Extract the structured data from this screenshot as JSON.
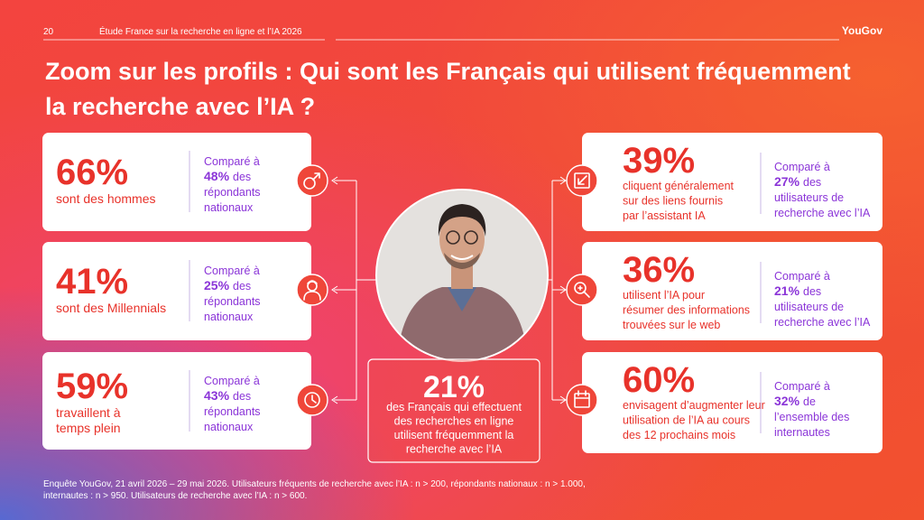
{
  "header": {
    "page_number": "20",
    "study": "Étude France sur la recherche en ligne et l’IA 2026",
    "brand": "YouGov"
  },
  "title": [
    "Zoom sur les profils : Qui sont les Français qui utilisent fréquemment",
    "la recherche avec l’IA ?"
  ],
  "left_cards": [
    {
      "value": "66%",
      "label": [
        "sont des hommes"
      ],
      "comparison": {
        "lead": "Comparé à",
        "value": "48%",
        "after": "des",
        "lines": [
          "répondants",
          "nationaux"
        ]
      }
    },
    {
      "value": "41%",
      "label": [
        "sont des Millennials"
      ],
      "comparison": {
        "lead": "Comparé à",
        "value": "25%",
        "after": "des",
        "lines": [
          "répondants",
          "nationaux"
        ]
      }
    },
    {
      "value": "59%",
      "label": [
        "travaillent à",
        "temps plein"
      ],
      "comparison": {
        "lead": "Comparé à",
        "value": "43%",
        "after": "des",
        "lines": [
          "répondants",
          "nationaux"
        ]
      }
    }
  ],
  "right_cards": [
    {
      "value": "39%",
      "label": [
        "cliquent généralement",
        "sur des liens fournis",
        "par l’assistant IA"
      ],
      "comparison": {
        "lead": "Comparé à",
        "value": "27%",
        "after": "des",
        "lines": [
          "utilisateurs de",
          "recherche avec l’IA"
        ]
      }
    },
    {
      "value": "36%",
      "label": [
        "utilisent l’IA pour",
        "résumer des informations",
        "trouvées sur le web"
      ],
      "comparison": {
        "lead": "Comparé à",
        "value": "21%",
        "after": "des",
        "lines": [
          "utilisateurs de",
          "recherche avec l’IA"
        ]
      }
    },
    {
      "value": "60%",
      "label": [
        "envisagent d’augmenter leur",
        "utilisation de l’IA au cours",
        "des 12 prochains mois"
      ],
      "comparison": {
        "lead": "Comparé à",
        "value": "32%",
        "after": "de",
        "lines": [
          "l’ensemble des",
          "internautes"
        ]
      }
    }
  ],
  "center": {
    "value": "21%",
    "label": [
      "des Français qui effectuent",
      "des recherches en ligne",
      "utilisent fréquemment la",
      "recherche avec l’IA"
    ]
  },
  "footer": [
    "Enquête YouGov, 21 avril 2026 – 29 mai 2026. Utilisateurs fréquents de recherche avec l’IA : n > 200, répondants nationaux : n > 1.000,",
    "internautes : n > 950. Utilisateurs de recherche avec l’IA : n > 600."
  ]
}
